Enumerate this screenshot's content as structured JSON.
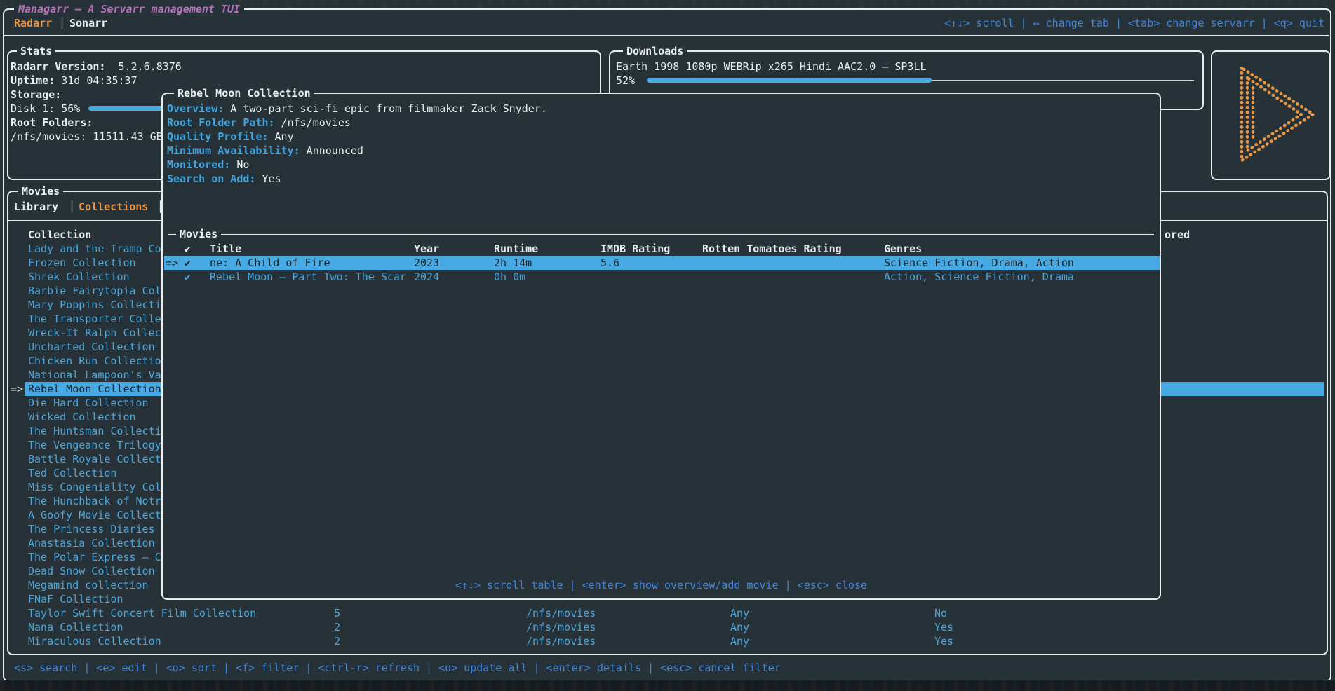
{
  "ui": {
    "selection_prefix": "=>",
    "tab_separator": "│"
  },
  "app": {
    "title": "Managarr – A Servarr management TUI",
    "servarr_tabs": [
      {
        "label": "Radarr",
        "active": true
      },
      {
        "label": "Sonarr",
        "active": false
      }
    ],
    "top_help": "<↑↓> scroll | ↔ change tab | <tab> change servarr | <q> quit"
  },
  "stats": {
    "title": "Stats",
    "version_label": "Radarr Version:",
    "version_value": "5.2.6.8376",
    "uptime_label": "Uptime:",
    "uptime_value": "31d 04:35:37",
    "storage_label": "Storage:",
    "disk_label": "Disk 1: 56%",
    "disk_percent": 56,
    "root_folders_label": "Root Folders:",
    "root_folder_value": "/nfs/movies: 11511.43 GB"
  },
  "downloads": {
    "title": "Downloads",
    "item": "Earth 1998 1080p WEBRip x265 Hindi AAC2.0 – SP3LL",
    "percent_label": "52%",
    "percent": 52
  },
  "movies_panel": {
    "title": "Movies",
    "tabs": [
      {
        "label": "Library",
        "active": false
      },
      {
        "label": "Collections",
        "active": true
      }
    ],
    "collection_header": "Collection",
    "monitored_header_fragment": "ored",
    "collections": [
      {
        "name": "Lady and the Tramp Co"
      },
      {
        "name": "Frozen Collection"
      },
      {
        "name": "Shrek Collection"
      },
      {
        "name": "Barbie Fairytopia Col"
      },
      {
        "name": "Mary Poppins Collecti"
      },
      {
        "name": "The Transporter Colle"
      },
      {
        "name": "Wreck-It Ralph Collec"
      },
      {
        "name": "Uncharted Collection"
      },
      {
        "name": "Chicken Run Collectio"
      },
      {
        "name": "National Lampoon's Va"
      },
      {
        "name": "Rebel Moon Collection",
        "selected": true
      },
      {
        "name": "Die Hard Collection"
      },
      {
        "name": "Wicked Collection"
      },
      {
        "name": "The Huntsman Collecti"
      },
      {
        "name": "The Vengeance Trilogy"
      },
      {
        "name": "Battle Royale Collect"
      },
      {
        "name": "Ted Collection"
      },
      {
        "name": "Miss Congeniality Col"
      },
      {
        "name": "The Hunchback of Notr"
      },
      {
        "name": "A Goofy Movie Collect"
      },
      {
        "name": "The Princess Diaries"
      },
      {
        "name": "Anastasia Collection"
      },
      {
        "name": "The Polar Express – C"
      },
      {
        "name": "Dead Snow Collection"
      },
      {
        "name": "Megamind collection"
      },
      {
        "name": "FNaF Collection"
      },
      {
        "name": "Taylor Swift Concert Film Collection",
        "cols": [
          "5",
          "/nfs/movies",
          "Any",
          "No"
        ]
      },
      {
        "name": "Nana Collection",
        "cols": [
          "2",
          "/nfs/movies",
          "Any",
          "Yes"
        ]
      },
      {
        "name": "Miraculous Collection",
        "cols": [
          "2",
          "/nfs/movies",
          "Any",
          "Yes"
        ]
      }
    ]
  },
  "modal": {
    "title": "Rebel Moon Collection",
    "fields": [
      {
        "label": "Overview:",
        "value": "A two-part sci-fi epic from filmmaker Zack Snyder."
      },
      {
        "label": "Root Folder Path:",
        "value": "/nfs/movies"
      },
      {
        "label": "Quality Profile:",
        "value": "Any"
      },
      {
        "label": "Minimum Availability:",
        "value": "Announced"
      },
      {
        "label": "Monitored:",
        "value": "No"
      },
      {
        "label": "Search on Add:",
        "value": "Yes"
      }
    ],
    "table": {
      "section_title": "Movies",
      "headers": [
        "✔",
        "Title",
        "Year",
        "Runtime",
        "IMDB Rating",
        "Rotten Tomatoes Rating",
        "Genres"
      ],
      "rows": [
        {
          "selected": true,
          "check": "✔",
          "title": "ne: A Child of Fire",
          "year": "2023",
          "runtime": "2h 14m",
          "imdb": "5.6",
          "rt": "",
          "genres": "Science Fiction, Drama, Action"
        },
        {
          "selected": false,
          "check": "✔",
          "title": "Rebel Moon – Part Two: The Scar",
          "year": "2024",
          "runtime": "0h 0m",
          "imdb": "",
          "rt": "",
          "genres": "Action, Science Fiction, Drama"
        }
      ]
    },
    "footer_help": "<↑↓> scroll table | <enter> show overview/add movie | <esc> close"
  },
  "bottom_help": "<s> search | <e> edit | <o> sort | <f> filter | <ctrl-r> refresh | <u> update all | <enter> details | <esc> cancel filter",
  "colors": {
    "background": "#263238",
    "border": "#e7edf0",
    "accent_blue": "#47aae4",
    "keybind_blue": "#3f84da",
    "list_blue": "#4da5d9",
    "label_blue": "#41a6e0",
    "orange": "#e79643",
    "magenta": "#b671bb"
  }
}
